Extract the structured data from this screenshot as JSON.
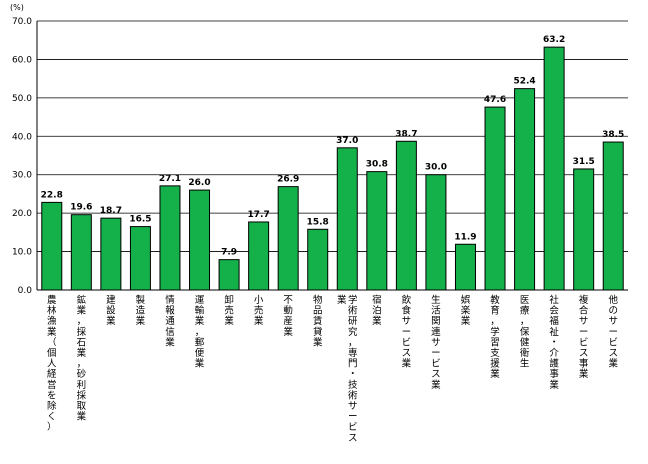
{
  "chart_data": {
    "type": "bar",
    "unit_label": "(%)",
    "ylim": [
      0,
      70
    ],
    "ytick_labels": [
      "0.0",
      "10.0",
      "20.0",
      "30.0",
      "40.0",
      "50.0",
      "60.0",
      "70.0"
    ],
    "grid": true,
    "bar_color": "#14b04a",
    "categories": [
      "農林漁業（個人経営を除く）",
      "鉱業，採石業，砂利採取業",
      "建設業",
      "製造業",
      "情報通信業",
      "運輸業，郵便業",
      "卸売業",
      "小売業",
      "不動産業",
      "物品賃貸業",
      "学術研究，専門・技術サービス業",
      "宿泊業",
      "飲食サービス業",
      "生活関連サービス業",
      "娯楽業",
      "教育，学習支援業",
      "医療，保健衛生",
      "社会福祉・介護事業",
      "複合サービス事業",
      "他のサービス業"
    ],
    "values": [
      22.8,
      19.6,
      18.7,
      16.5,
      27.1,
      26.0,
      7.9,
      17.7,
      26.9,
      15.8,
      37.0,
      30.8,
      38.7,
      30.0,
      11.9,
      47.6,
      52.4,
      63.2,
      31.5,
      38.5
    ],
    "value_labels": [
      "22.8",
      "19.6",
      "18.7",
      "16.5",
      "27.1",
      "26.0",
      "7.9",
      "17.7",
      "26.9",
      "15.8",
      "37.0",
      "30.8",
      "38.7",
      "30.0",
      "11.9",
      "47.6",
      "52.4",
      "63.2",
      "31.5",
      "38.5"
    ]
  }
}
